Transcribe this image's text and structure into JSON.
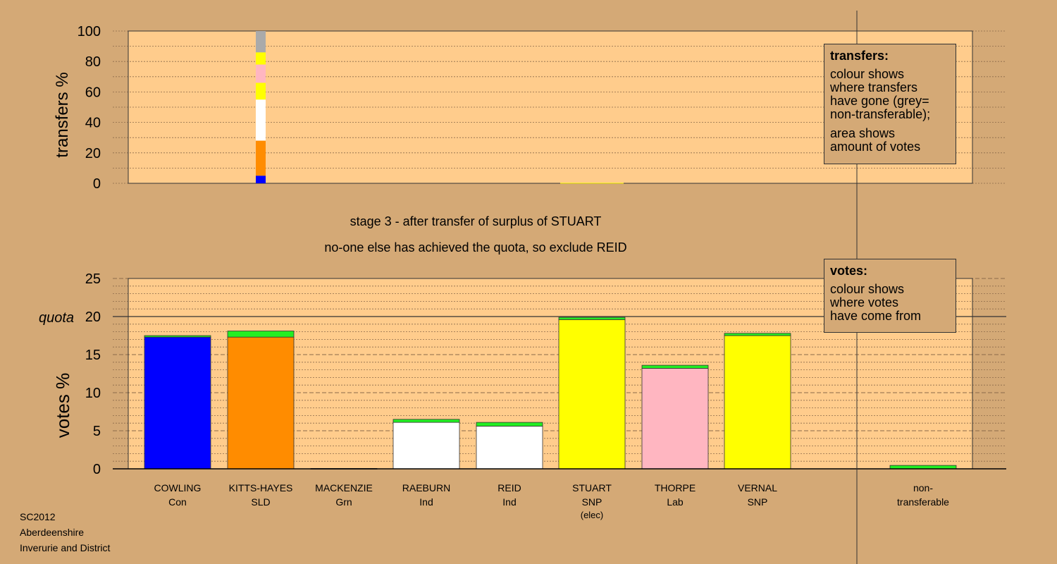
{
  "chart_data": [
    {
      "type": "bar",
      "stacked": true,
      "ylabel": "transfers %",
      "ylim": [
        0,
        100
      ],
      "yticks": [
        0,
        20,
        40,
        60,
        80,
        100
      ],
      "grid": true,
      "bars": [
        {
          "category": "KITTS-HAYES",
          "segments": [
            {
              "value": 5,
              "color": "#0000ff"
            },
            {
              "value": 23,
              "color": "#ff8c00"
            },
            {
              "value": 27,
              "color": "#ffffff"
            },
            {
              "value": 11,
              "color": "#ffff00"
            },
            {
              "value": 12,
              "color": "#ffb6c1"
            },
            {
              "value": 8,
              "color": "#ffff00"
            },
            {
              "value": 14,
              "color": "#aaaaaa"
            }
          ]
        },
        {
          "category": "STUART",
          "segments": [
            {
              "value": 0.3,
              "color": "#ffff00"
            }
          ]
        }
      ]
    },
    {
      "type": "bar",
      "stacked": true,
      "ylabel": "votes %",
      "ylim": [
        0,
        25
      ],
      "yticks": [
        0,
        5,
        10,
        15,
        20,
        25
      ],
      "quota": 20,
      "quota_label": "quota",
      "grid": true,
      "categories": [
        {
          "name": "COWLING",
          "party": "Con",
          "note": ""
        },
        {
          "name": "KITTS-HAYES",
          "party": "SLD",
          "note": ""
        },
        {
          "name": "MACKENZIE",
          "party": "Grn",
          "note": ""
        },
        {
          "name": "RAEBURN",
          "party": "Ind",
          "note": ""
        },
        {
          "name": "REID",
          "party": "Ind",
          "note": ""
        },
        {
          "name": "STUART",
          "party": "SNP",
          "note": "(elec)"
        },
        {
          "name": "THORPE",
          "party": "Lab",
          "note": ""
        },
        {
          "name": "VERNAL",
          "party": "SNP",
          "note": ""
        }
      ],
      "nontransferable_label": [
        "non-",
        "transferable"
      ],
      "bars": [
        {
          "category": "COWLING",
          "segments": [
            {
              "value": 17.3,
              "color": "#0000ff"
            },
            {
              "value": 0.2,
              "color": "#22ee22"
            }
          ]
        },
        {
          "category": "KITTS-HAYES",
          "segments": [
            {
              "value": 17.3,
              "color": "#ff8c00"
            },
            {
              "value": 0.8,
              "color": "#22ee22"
            }
          ]
        },
        {
          "category": "MACKENZIE",
          "segments": [
            {
              "value": 0.05,
              "color": "#22ee22"
            }
          ]
        },
        {
          "category": "RAEBURN",
          "segments": [
            {
              "value": 6.1,
              "color": "#ffffff"
            },
            {
              "value": 0.4,
              "color": "#22ee22"
            }
          ]
        },
        {
          "category": "REID",
          "segments": [
            {
              "value": 5.6,
              "color": "#ffffff"
            },
            {
              "value": 0.5,
              "color": "#22ee22"
            }
          ]
        },
        {
          "category": "STUART",
          "segments": [
            {
              "value": 19.6,
              "color": "#ffff00"
            },
            {
              "value": 0.3,
              "color": "#22ee22"
            }
          ]
        },
        {
          "category": "THORPE",
          "segments": [
            {
              "value": 13.2,
              "color": "#ffb6c1"
            },
            {
              "value": 0.4,
              "color": "#22ee22"
            }
          ]
        },
        {
          "category": "VERNAL",
          "segments": [
            {
              "value": 17.5,
              "color": "#ffff00"
            },
            {
              "value": 0.3,
              "color": "#22ee22"
            }
          ]
        },
        {
          "category": "non-transferable",
          "segments": [
            {
              "value": 0.45,
              "color": "#22ee22"
            }
          ]
        }
      ]
    }
  ],
  "stage_text": "stage 3 - after transfer of surplus of STUART",
  "stage_subtext": "no-one else has achieved the quota, so exclude REID",
  "transfers_legend": {
    "title": "transfers:",
    "lines1": [
      "colour shows",
      "where transfers",
      "have gone (grey=",
      "non-transferable);"
    ],
    "lines2": [
      "area shows",
      "amount of votes"
    ]
  },
  "votes_legend": {
    "title": "votes:",
    "lines": [
      "colour shows",
      "where votes",
      "have come from"
    ]
  },
  "footer": [
    "SC2012",
    "Aberdeenshire",
    "Inverurie and District"
  ],
  "colors": {
    "background": "#d4a976",
    "plot_background": "#ffcc8c",
    "grid": "#8b6a4a"
  }
}
